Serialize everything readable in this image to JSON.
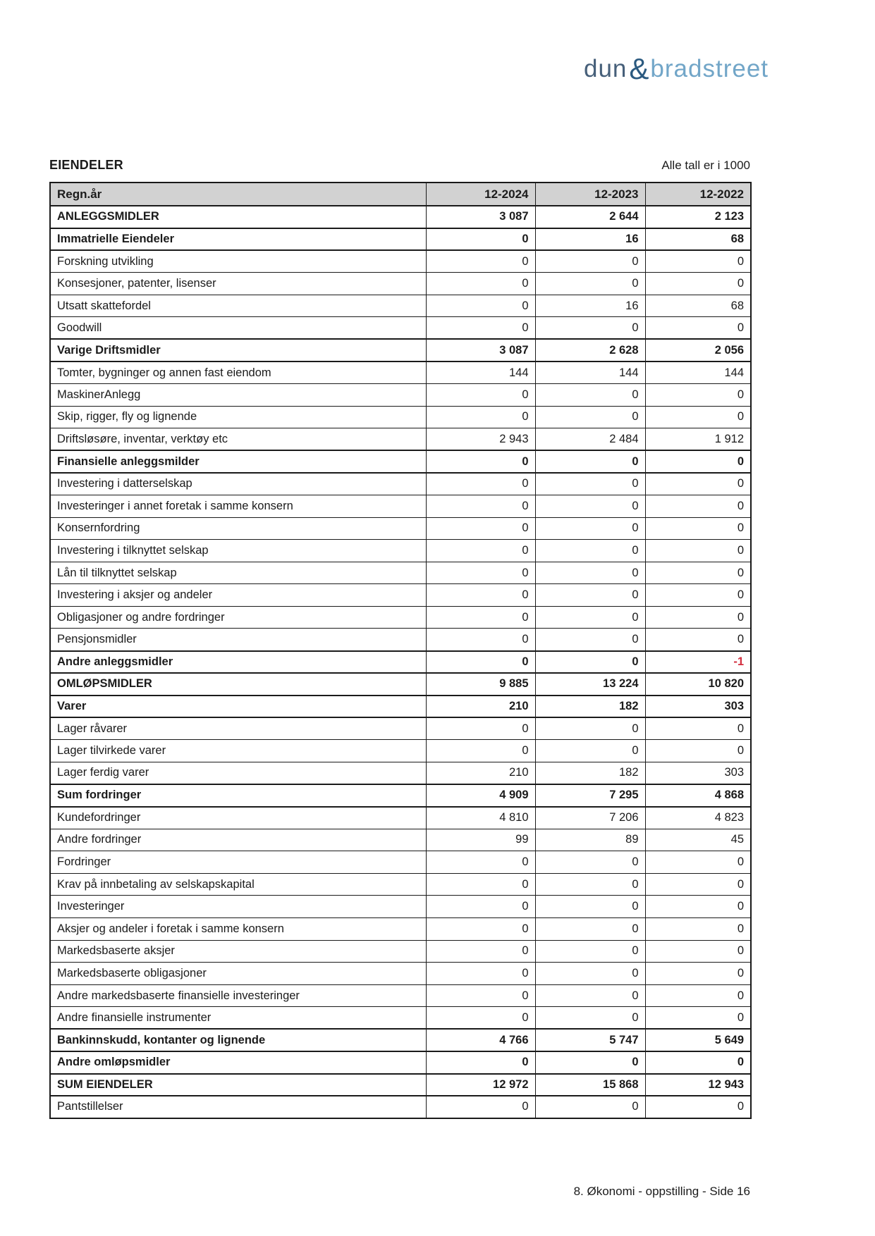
{
  "logo": {
    "part1": "dun",
    "amp": "&",
    "part2": "bradstreet"
  },
  "header": {
    "title": "EIENDELER",
    "note": "Alle tall er i 1000"
  },
  "colors": {
    "logo_dark_blue": "#2b5a80",
    "logo_slate": "#47607a",
    "logo_light_blue": "#72a6c8",
    "table_header_bg": "#d2d2d2",
    "negative_value_red": "#d32f3f"
  },
  "table": {
    "columns": [
      "Regn.år",
      "12-2024",
      "12-2023",
      "12-2022"
    ],
    "rows": [
      {
        "label": "ANLEGGSMIDLER",
        "values": [
          "3 087",
          "2 644",
          "2 123"
        ],
        "bold": true
      },
      {
        "label": "Immatrielle Eiendeler",
        "values": [
          "0",
          "16",
          "68"
        ],
        "bold": true
      },
      {
        "label": "Forskning utvikling",
        "values": [
          "0",
          "0",
          "0"
        ],
        "bold": false
      },
      {
        "label": "Konsesjoner, patenter, lisenser",
        "values": [
          "0",
          "0",
          "0"
        ],
        "bold": false
      },
      {
        "label": "Utsatt skattefordel",
        "values": [
          "0",
          "16",
          "68"
        ],
        "bold": false
      },
      {
        "label": "Goodwill",
        "values": [
          "0",
          "0",
          "0"
        ],
        "bold": false
      },
      {
        "label": "Varige Driftsmidler",
        "values": [
          "3 087",
          "2 628",
          "2 056"
        ],
        "bold": true
      },
      {
        "label": "Tomter, bygninger og annen fast eiendom",
        "values": [
          "144",
          "144",
          "144"
        ],
        "bold": false
      },
      {
        "label": "MaskinerAnlegg",
        "values": [
          "0",
          "0",
          "0"
        ],
        "bold": false
      },
      {
        "label": "Skip, rigger, fly og lignende",
        "values": [
          "0",
          "0",
          "0"
        ],
        "bold": false
      },
      {
        "label": "Driftsløsøre, inventar, verktøy etc",
        "values": [
          "2 943",
          "2 484",
          "1 912"
        ],
        "bold": false
      },
      {
        "label": "Finansielle anleggsmilder",
        "values": [
          "0",
          "0",
          "0"
        ],
        "bold": true
      },
      {
        "label": "Investering i datterselskap",
        "values": [
          "0",
          "0",
          "0"
        ],
        "bold": false
      },
      {
        "label": "Investeringer i annet foretak i samme konsern",
        "values": [
          "0",
          "0",
          "0"
        ],
        "bold": false
      },
      {
        "label": "Konsernfordring",
        "values": [
          "0",
          "0",
          "0"
        ],
        "bold": false
      },
      {
        "label": "Investering i tilknyttet selskap",
        "values": [
          "0",
          "0",
          "0"
        ],
        "bold": false
      },
      {
        "label": "Lån til tilknyttet selskap",
        "values": [
          "0",
          "0",
          "0"
        ],
        "bold": false
      },
      {
        "label": "Investering i aksjer og andeler",
        "values": [
          "0",
          "0",
          "0"
        ],
        "bold": false
      },
      {
        "label": "Obligasjoner og andre fordringer",
        "values": [
          "0",
          "0",
          "0"
        ],
        "bold": false
      },
      {
        "label": "Pensjonsmidler",
        "values": [
          "0",
          "0",
          "0"
        ],
        "bold": false
      },
      {
        "label": "Andre anleggsmidler",
        "values": [
          "0",
          "0",
          "-1"
        ],
        "bold": true
      },
      {
        "label": "OMLØPSMIDLER",
        "values": [
          "9 885",
          "13 224",
          "10 820"
        ],
        "bold": true
      },
      {
        "label": "Varer",
        "values": [
          "210",
          "182",
          "303"
        ],
        "bold": true
      },
      {
        "label": "Lager råvarer",
        "values": [
          "0",
          "0",
          "0"
        ],
        "bold": false
      },
      {
        "label": "Lager tilvirkede varer",
        "values": [
          "0",
          "0",
          "0"
        ],
        "bold": false
      },
      {
        "label": "Lager ferdig varer",
        "values": [
          "210",
          "182",
          "303"
        ],
        "bold": false
      },
      {
        "label": "Sum fordringer",
        "values": [
          "4 909",
          "7 295",
          "4 868"
        ],
        "bold": true
      },
      {
        "label": "Kundefordringer",
        "values": [
          "4 810",
          "7 206",
          "4 823"
        ],
        "bold": false
      },
      {
        "label": "Andre fordringer",
        "values": [
          "99",
          "89",
          "45"
        ],
        "bold": false
      },
      {
        "label": "Fordringer",
        "values": [
          "0",
          "0",
          "0"
        ],
        "bold": false
      },
      {
        "label": "Krav på innbetaling av selskapskapital",
        "values": [
          "0",
          "0",
          "0"
        ],
        "bold": false
      },
      {
        "label": "Investeringer",
        "values": [
          "0",
          "0",
          "0"
        ],
        "bold": false
      },
      {
        "label": "Aksjer og andeler i foretak i samme konsern",
        "values": [
          "0",
          "0",
          "0"
        ],
        "bold": false
      },
      {
        "label": "Markedsbaserte aksjer",
        "values": [
          "0",
          "0",
          "0"
        ],
        "bold": false
      },
      {
        "label": "Markedsbaserte obligasjoner",
        "values": [
          "0",
          "0",
          "0"
        ],
        "bold": false
      },
      {
        "label": "Andre markedsbaserte finansielle investeringer",
        "values": [
          "0",
          "0",
          "0"
        ],
        "bold": false
      },
      {
        "label": "Andre finansielle instrumenter",
        "values": [
          "0",
          "0",
          "0"
        ],
        "bold": false
      },
      {
        "label": "Bankinnskudd, kontanter og lignende",
        "values": [
          "4 766",
          "5 747",
          "5 649"
        ],
        "bold": true
      },
      {
        "label": "Andre omløpsmidler",
        "values": [
          "0",
          "0",
          "0"
        ],
        "bold": true
      },
      {
        "label": "SUM EIENDELER",
        "values": [
          "12 972",
          "15 868",
          "12 943"
        ],
        "bold": true
      },
      {
        "label": "Pantstillelser",
        "values": [
          "0",
          "0",
          "0"
        ],
        "bold": false
      }
    ]
  },
  "footer": {
    "text": "8. Økonomi - oppstilling - Side 16"
  }
}
